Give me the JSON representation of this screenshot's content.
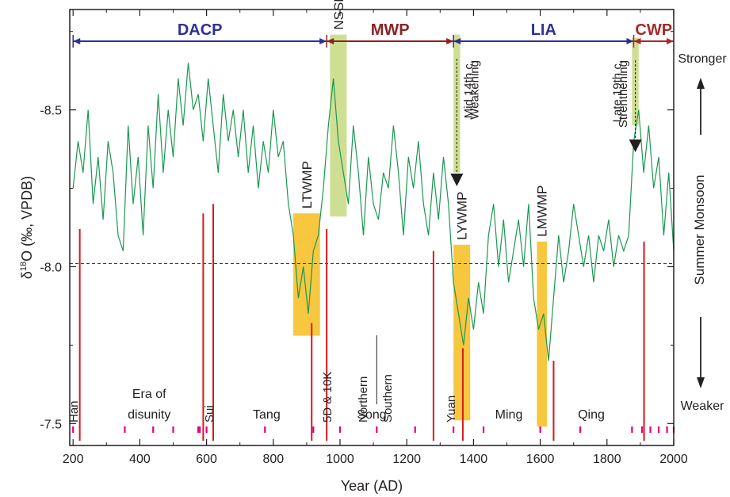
{
  "chart_data": {
    "type": "line",
    "title": "",
    "xlabel": "Year (AD)",
    "ylabel_main": "δ",
    "ylabel_sup": "18",
    "ylabel_rest": "O (‰, VPDB)",
    "right_label": "Summer Monsoon",
    "right_top": "Stronger",
    "right_bottom": "Weaker",
    "xlim": [
      190,
      2000
    ],
    "ylim": [
      -8.82,
      -7.43
    ],
    "y_inverted": true,
    "x_ticks": [
      200,
      400,
      600,
      800,
      1000,
      1200,
      1400,
      1600,
      1800,
      2000
    ],
    "y_ticks": [
      -8.5,
      -8.0,
      -7.5
    ],
    "y_tick_labels": [
      "-8.5",
      "-8.0",
      "-7.5"
    ],
    "mean_line": -8.01,
    "series": [
      {
        "color": "#1a9850",
        "x": [
          200,
          215,
          230,
          245,
          260,
          275,
          290,
          305,
          320,
          335,
          350,
          365,
          380,
          395,
          410,
          425,
          440,
          455,
          470,
          485,
          500,
          515,
          530,
          545,
          560,
          575,
          590,
          605,
          620,
          635,
          650,
          665,
          680,
          695,
          710,
          725,
          740,
          755,
          770,
          785,
          800,
          815,
          830,
          845,
          860,
          875,
          890,
          905,
          920,
          935,
          950,
          965,
          980,
          995,
          1010,
          1025,
          1040,
          1055,
          1070,
          1085,
          1100,
          1115,
          1130,
          1145,
          1160,
          1175,
          1190,
          1205,
          1220,
          1235,
          1250,
          1265,
          1280,
          1295,
          1310,
          1325,
          1340,
          1355,
          1370,
          1385,
          1400,
          1415,
          1430,
          1445,
          1460,
          1475,
          1490,
          1505,
          1520,
          1535,
          1550,
          1565,
          1580,
          1595,
          1610,
          1625,
          1640,
          1655,
          1670,
          1685,
          1700,
          1715,
          1730,
          1745,
          1760,
          1775,
          1790,
          1805,
          1820,
          1835,
          1850,
          1865,
          1880,
          1895,
          1910,
          1925,
          1940,
          1955,
          1970,
          1985,
          2000
        ],
        "y": [
          -8.25,
          -8.4,
          -8.3,
          -8.5,
          -8.2,
          -8.35,
          -8.15,
          -8.4,
          -8.3,
          -8.1,
          -8.05,
          -8.45,
          -8.2,
          -8.35,
          -8.1,
          -8.45,
          -8.25,
          -8.55,
          -8.3,
          -8.5,
          -8.35,
          -8.6,
          -8.45,
          -8.65,
          -8.5,
          -8.55,
          -8.4,
          -8.6,
          -8.45,
          -8.3,
          -8.55,
          -8.4,
          -8.5,
          -8.35,
          -8.5,
          -8.3,
          -8.45,
          -8.25,
          -8.4,
          -8.3,
          -8.5,
          -8.35,
          -8.4,
          -8.2,
          -8.1,
          -7.9,
          -8.0,
          -7.85,
          -8.05,
          -8.1,
          -8.25,
          -8.45,
          -8.6,
          -8.4,
          -8.3,
          -8.2,
          -8.45,
          -8.3,
          -8.1,
          -8.35,
          -8.2,
          -8.15,
          -8.3,
          -8.25,
          -8.45,
          -8.3,
          -8.1,
          -8.35,
          -8.25,
          -8.4,
          -8.2,
          -8.1,
          -8.3,
          -8.15,
          -8.35,
          -8.2,
          -7.95,
          -7.85,
          -7.75,
          -7.9,
          -7.8,
          -7.95,
          -7.85,
          -8.1,
          -8.2,
          -8.0,
          -8.15,
          -7.95,
          -8.05,
          -8.15,
          -8.0,
          -8.2,
          -7.9,
          -7.8,
          -7.85,
          -7.7,
          -7.9,
          -8.1,
          -7.95,
          -8.05,
          -8.2,
          -8.1,
          -8.0,
          -8.1,
          -7.95,
          -8.1,
          -8.05,
          -8.15,
          -8.0,
          -8.1,
          -8.05,
          -8.1,
          -8.4,
          -8.5,
          -8.3,
          -8.45,
          -8.25,
          -8.35,
          -8.1,
          -8.3,
          -8.05
        ]
      }
    ],
    "periods": [
      {
        "label": "DACP",
        "from": 200,
        "to": 960,
        "color": "#2e3192"
      },
      {
        "label": "MWP",
        "from": 960,
        "to": 1340,
        "color": "#8b2323"
      },
      {
        "label": "LIA",
        "from": 1340,
        "to": 1880,
        "color": "#2e3192"
      },
      {
        "label": "CWP",
        "from": 1880,
        "to": 2000,
        "color": "#a52a2a"
      }
    ],
    "shaded": [
      {
        "label": "LTWMP",
        "from": 860,
        "to": 940,
        "ytop": -8.17,
        "ybot": -7.78,
        "color": "#f5c12a"
      },
      {
        "label": "NSSMP",
        "from": 970,
        "to": 1020,
        "ytop": -8.74,
        "ybot": -8.16,
        "color": "#c9dc87"
      },
      {
        "label": "LYWMP",
        "from": 1340,
        "to": 1390,
        "ytop": -8.07,
        "ybot": -7.51,
        "color": "#f5c12a"
      },
      {
        "label": "LMWMP",
        "from": 1590,
        "to": 1620,
        "ytop": -8.08,
        "ybot": -7.49,
        "color": "#f5c12a"
      },
      {
        "label": "",
        "from": 1340,
        "to": 1360,
        "ytop": -8.74,
        "ybot": -8.3,
        "color": "#c9dc87"
      },
      {
        "label": "",
        "from": 1875,
        "to": 1895,
        "ytop": -8.73,
        "ybot": -8.45,
        "color": "#c9dc87"
      }
    ],
    "annotations": [
      {
        "text": "Mid 14th c.",
        "x": 1382
      },
      {
        "text": "Weakening",
        "x": 1400
      },
      {
        "text": "Late 19th c.",
        "x": 1828
      },
      {
        "text": "Strenthening",
        "x": 1846
      }
    ],
    "red_lines": [
      {
        "x": 220,
        "ytop": -8.12
      },
      {
        "x": 590,
        "ytop": -8.17
      },
      {
        "x": 620,
        "ytop": -8.2
      },
      {
        "x": 915,
        "ytop": -7.82
      },
      {
        "x": 960,
        "ytop": -8.12
      },
      {
        "x": 1280,
        "ytop": -8.05
      },
      {
        "x": 1368,
        "ytop": -7.74
      },
      {
        "x": 1640,
        "ytop": -7.7
      },
      {
        "x": 1911,
        "ytop": -8.08
      }
    ],
    "pink_ticks": [
      200,
      355,
      440,
      500,
      575,
      580,
      600,
      775,
      920,
      1000,
      1110,
      1225,
      1340,
      1430,
      1600,
      1720,
      1875,
      1905,
      1930,
      1955,
      1980,
      2000
    ],
    "dynasties": [
      {
        "text": "Han",
        "x": 200,
        "rotated": true
      },
      {
        "text": "Era of",
        "x": 428,
        "rotated": false,
        "line": 1
      },
      {
        "text": "disunity",
        "x": 428,
        "rotated": false,
        "line": 2
      },
      {
        "text": "Sui",
        "x": 606,
        "rotated": true
      },
      {
        "text": "Tang",
        "x": 780,
        "rotated": false,
        "line": 2
      },
      {
        "text": "5D & 10K",
        "x": 960,
        "rotated": true
      },
      {
        "text": "Northern",
        "x": 1066,
        "rotated": true
      },
      {
        "text": "Southern",
        "x": 1140,
        "rotated": true
      },
      {
        "text": "Song",
        "x": 1095,
        "rotated": false,
        "line": 2
      },
      {
        "text": "Yuan",
        "x": 1330,
        "rotated": true
      },
      {
        "text": "Ming",
        "x": 1506,
        "rotated": false,
        "line": 2
      },
      {
        "text": "Qing",
        "x": 1753,
        "rotated": false,
        "line": 2
      }
    ]
  }
}
